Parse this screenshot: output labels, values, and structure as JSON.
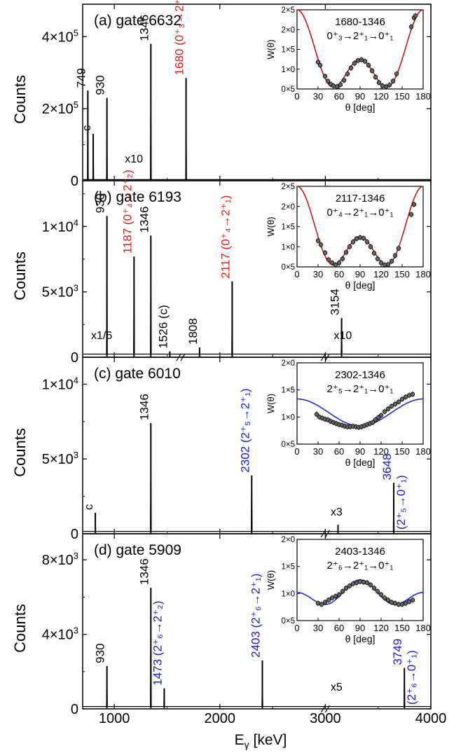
{
  "figure": {
    "ylabel": "Counts",
    "xlabel_main": "E",
    "xlabel_sub": "γ",
    "xlabel_unit": " [keV]",
    "x_ticks": [
      "1000",
      "2000",
      "3000",
      "4000"
    ],
    "xlim": [
      700,
      4000
    ]
  },
  "colors": {
    "black": "#000000",
    "red": "#e0201b",
    "blue": "#1a1adb",
    "inset_red": "#d11414",
    "inset_blue": "#1f2fd6"
  },
  "chart_data": [
    {
      "type": "line",
      "panel_label": "(a) gate 6632",
      "y_ticks": [
        {
          "value": 0,
          "label": "0"
        },
        {
          "value": 200000,
          "label": "2×10",
          "exp": "5"
        },
        {
          "value": 400000,
          "label": "4×10",
          "exp": "5"
        }
      ],
      "ylim": [
        0,
        490000
      ],
      "baseline_counts": 2000,
      "scale_marks": [
        {
          "label": "x10",
          "x": 1100
        }
      ],
      "peaks": [
        {
          "x": 749,
          "y": 250000,
          "label": "749",
          "color": "black"
        },
        {
          "x": 800,
          "y": 130000,
          "label": "c",
          "color": "black"
        },
        {
          "x": 930,
          "y": 230000,
          "label": "930",
          "color": "black"
        },
        {
          "x": 1346,
          "y": 380000,
          "label": "1346",
          "color": "black"
        },
        {
          "x": 1680,
          "y": 285000,
          "label": "1680 (0⁺₃→2⁺₁)",
          "color": "red"
        }
      ],
      "inset": {
        "title": "1680-1346",
        "subtitle": "0⁺₃→2⁺₁→0⁺₁",
        "ylabel": "W(θ)",
        "xlabel": "θ [deg]",
        "x_ticks": [
          "0",
          "30",
          "60",
          "90",
          "120",
          "150",
          "180"
        ],
        "y_ticks": [
          "0×5",
          "1×0",
          "1×5",
          "2×0",
          "2×5"
        ],
        "ylim": [
          0.5,
          2.5
        ],
        "fit_color": "inset_red",
        "fit": {
          "a2": 0.357,
          "a4": 1.143
        },
        "points": [
          {
            "x": 30,
            "y": 1.18
          },
          {
            "x": 33,
            "y": 1.1
          },
          {
            "x": 40,
            "y": 0.82
          },
          {
            "x": 44,
            "y": 0.7
          },
          {
            "x": 48,
            "y": 0.62
          },
          {
            "x": 52,
            "y": 0.58
          },
          {
            "x": 57,
            "y": 0.56
          },
          {
            "x": 62,
            "y": 0.61
          },
          {
            "x": 67,
            "y": 0.72
          },
          {
            "x": 72,
            "y": 0.88
          },
          {
            "x": 77,
            "y": 1.03
          },
          {
            "x": 82,
            "y": 1.15
          },
          {
            "x": 87,
            "y": 1.22
          },
          {
            "x": 92,
            "y": 1.24
          },
          {
            "x": 97,
            "y": 1.2
          },
          {
            "x": 102,
            "y": 1.1
          },
          {
            "x": 107,
            "y": 0.96
          },
          {
            "x": 112,
            "y": 0.8
          },
          {
            "x": 117,
            "y": 0.66
          },
          {
            "x": 122,
            "y": 0.58
          },
          {
            "x": 127,
            "y": 0.56
          },
          {
            "x": 132,
            "y": 0.6
          },
          {
            "x": 137,
            "y": 0.7
          },
          {
            "x": 142,
            "y": 0.88
          },
          {
            "x": 163,
            "y": 2.07
          },
          {
            "x": 167,
            "y": 2.3
          },
          {
            "x": 169,
            "y": 2.35
          }
        ]
      }
    },
    {
      "type": "line",
      "panel_label": "(b) gate 6193",
      "y_ticks": [
        {
          "value": 0,
          "label": "0"
        },
        {
          "value": 5000,
          "label": "5×10",
          "exp": "3"
        },
        {
          "value": 10000,
          "label": "1×10",
          "exp": "4"
        }
      ],
      "ylim": [
        0,
        13500
      ],
      "baseline_counts": 150,
      "scale_marks": [
        {
          "label": "x1/6",
          "x": 780
        },
        {
          "label": "x10",
          "x": 3080
        }
      ],
      "peaks": [
        {
          "x": 930,
          "y": 10800,
          "label": "930",
          "color": "black"
        },
        {
          "x": 1187,
          "y": 7700,
          "label": "1187 (0⁺₄→2⁺₂)",
          "color": "red"
        },
        {
          "x": 1346,
          "y": 9300,
          "label": "1346",
          "color": "black"
        },
        {
          "x": 1526,
          "y": 450,
          "label": "1526 (c)",
          "color": "black"
        },
        {
          "x": 1808,
          "y": 750,
          "label": "1808",
          "color": "black"
        },
        {
          "x": 2117,
          "y": 5800,
          "label": "2117 (0⁺₄→2⁺₁)",
          "color": "red"
        },
        {
          "x": 3154,
          "y": 3000,
          "label": "3154",
          "color": "black"
        }
      ],
      "inset": {
        "title": "2117-1346",
        "subtitle": "0⁺₄→2⁺₁→0⁺₁",
        "ylabel": "W(θ)",
        "xlabel": "θ [deg]",
        "x_ticks": [
          "0",
          "30",
          "60",
          "90",
          "120",
          "150",
          "180"
        ],
        "y_ticks": [
          "0×5",
          "1×0",
          "1×5",
          "2×0",
          "2×5"
        ],
        "ylim": [
          0.5,
          2.5
        ],
        "fit_color": "inset_red",
        "fit": {
          "a2": 0.357,
          "a4": 1.143
        },
        "points": [
          {
            "x": 30,
            "y": 1.15
          },
          {
            "x": 34,
            "y": 1.05
          },
          {
            "x": 40,
            "y": 0.85
          },
          {
            "x": 45,
            "y": 0.68
          },
          {
            "x": 50,
            "y": 0.6
          },
          {
            "x": 55,
            "y": 0.55
          },
          {
            "x": 60,
            "y": 0.6
          },
          {
            "x": 65,
            "y": 0.7
          },
          {
            "x": 70,
            "y": 0.86
          },
          {
            "x": 75,
            "y": 1.0
          },
          {
            "x": 80,
            "y": 1.12
          },
          {
            "x": 85,
            "y": 1.2
          },
          {
            "x": 90,
            "y": 1.23
          },
          {
            "x": 95,
            "y": 1.21
          },
          {
            "x": 100,
            "y": 1.12
          },
          {
            "x": 105,
            "y": 1.0
          },
          {
            "x": 110,
            "y": 0.84
          },
          {
            "x": 115,
            "y": 0.7
          },
          {
            "x": 120,
            "y": 0.6
          },
          {
            "x": 125,
            "y": 0.55
          },
          {
            "x": 130,
            "y": 0.56
          },
          {
            "x": 135,
            "y": 0.64
          },
          {
            "x": 140,
            "y": 0.78
          },
          {
            "x": 145,
            "y": 0.96
          },
          {
            "x": 163,
            "y": 1.8
          },
          {
            "x": 167,
            "y": 2.05
          }
        ]
      }
    },
    {
      "type": "line",
      "panel_label": "(c) gate 6010",
      "y_ticks": [
        {
          "value": 0,
          "label": "0"
        },
        {
          "value": 5000,
          "label": "5×10",
          "exp": "3"
        },
        {
          "value": 10000,
          "label": "1×10",
          "exp": "4"
        }
      ],
      "ylim": [
        0,
        11800
      ],
      "baseline_counts": 100,
      "scale_marks": [
        {
          "label": "x3",
          "x": 3050
        }
      ],
      "peaks": [
        {
          "x": 820,
          "y": 1400,
          "label": "c",
          "color": "black"
        },
        {
          "x": 1346,
          "y": 7400,
          "label": "1346",
          "color": "black"
        },
        {
          "x": 2302,
          "y": 3900,
          "label": "2302 (2⁺₅→2⁺₁)",
          "color": "blue"
        },
        {
          "x": 3120,
          "y": 600,
          "label": "",
          "color": "black"
        },
        {
          "x": 3648,
          "y": 3400,
          "label": "3648",
          "label2": "(2⁺₅→0⁺₁)",
          "color": "blue"
        }
      ],
      "inset": {
        "title": "2302-1346",
        "subtitle": "2⁺₅→2⁺₁→0⁺₁",
        "ylabel": "W(θ)",
        "xlabel": "θ [deg]",
        "x_ticks": [
          "0",
          "30",
          "60",
          "90",
          "120",
          "150",
          "180"
        ],
        "y_ticks": [
          "0×5",
          "1×0",
          "1×5",
          "2×0"
        ],
        "ylim": [
          0.5,
          2.0
        ],
        "fit_color": "inset_blue",
        "fit": {
          "a2": 0.333,
          "a4": 0.0
        },
        "points": [
          {
            "x": 28,
            "y": 1.05
          },
          {
            "x": 32,
            "y": 1.0
          },
          {
            "x": 36,
            "y": 0.98
          },
          {
            "x": 40,
            "y": 0.96
          },
          {
            "x": 44,
            "y": 0.95
          },
          {
            "x": 48,
            "y": 0.92
          },
          {
            "x": 52,
            "y": 0.9
          },
          {
            "x": 56,
            "y": 0.88
          },
          {
            "x": 60,
            "y": 0.86
          },
          {
            "x": 64,
            "y": 0.85
          },
          {
            "x": 68,
            "y": 0.83
          },
          {
            "x": 72,
            "y": 0.82
          },
          {
            "x": 76,
            "y": 0.82
          },
          {
            "x": 80,
            "y": 0.83
          },
          {
            "x": 84,
            "y": 0.82
          },
          {
            "x": 88,
            "y": 0.81
          },
          {
            "x": 92,
            "y": 0.82
          },
          {
            "x": 96,
            "y": 0.84
          },
          {
            "x": 100,
            "y": 0.86
          },
          {
            "x": 104,
            "y": 0.88
          },
          {
            "x": 108,
            "y": 0.9
          },
          {
            "x": 112,
            "y": 0.95
          },
          {
            "x": 116,
            "y": 0.99
          },
          {
            "x": 120,
            "y": 1.03
          },
          {
            "x": 125,
            "y": 1.1
          },
          {
            "x": 130,
            "y": 1.15
          },
          {
            "x": 135,
            "y": 1.2
          },
          {
            "x": 140,
            "y": 1.24
          },
          {
            "x": 145,
            "y": 1.28
          },
          {
            "x": 150,
            "y": 1.33
          },
          {
            "x": 155,
            "y": 1.37
          },
          {
            "x": 160,
            "y": 1.4
          },
          {
            "x": 165,
            "y": 1.42
          }
        ]
      }
    },
    {
      "type": "line",
      "panel_label": "(d) gate 5909",
      "y_ticks": [
        {
          "value": 0,
          "label": "0"
        },
        {
          "value": 4000,
          "label": "4×10",
          "exp": "3"
        },
        {
          "value": 8000,
          "label": "8×10",
          "exp": "3"
        }
      ],
      "ylim": [
        0,
        9400
      ],
      "baseline_counts": 80,
      "scale_marks": [
        {
          "label": "x5",
          "x": 3050
        }
      ],
      "peaks": [
        {
          "x": 930,
          "y": 2300,
          "label": "930",
          "color": "black"
        },
        {
          "x": 1346,
          "y": 6500,
          "label": "1346",
          "color": "black"
        },
        {
          "x": 1473,
          "y": 1100,
          "label": "1473 (2⁺₆→2⁺₂)",
          "color": "blue"
        },
        {
          "x": 2403,
          "y": 2600,
          "label": "2403 (2⁺₆→2⁺₁)",
          "color": "blue"
        },
        {
          "x": 3749,
          "y": 2200,
          "label": "3749",
          "label2": "(2⁺₆→0⁺₁)",
          "color": "blue"
        }
      ],
      "inset": {
        "title": "2403-1346",
        "subtitle": "2⁺₆→2⁺₁→0⁺₁",
        "ylabel": "W(θ)",
        "xlabel": "θ [deg]",
        "x_ticks": [
          "0",
          "30",
          "60",
          "90",
          "120",
          "150",
          "180"
        ],
        "y_ticks": [
          "0×5",
          "1×0",
          "1×5",
          "2×0"
        ],
        "ylim": [
          0.5,
          2.0
        ],
        "fit_color": "inset_blue",
        "fit": {
          "a2": -0.28,
          "a4": 0.3
        },
        "points": [
          {
            "x": 30,
            "y": 0.82
          },
          {
            "x": 35,
            "y": 0.8
          },
          {
            "x": 40,
            "y": 0.84
          },
          {
            "x": 45,
            "y": 0.88
          },
          {
            "x": 50,
            "y": 0.92
          },
          {
            "x": 55,
            "y": 0.95
          },
          {
            "x": 60,
            "y": 0.98
          },
          {
            "x": 65,
            "y": 1.04
          },
          {
            "x": 70,
            "y": 1.1
          },
          {
            "x": 75,
            "y": 1.14
          },
          {
            "x": 80,
            "y": 1.18
          },
          {
            "x": 85,
            "y": 1.2
          },
          {
            "x": 90,
            "y": 1.22
          },
          {
            "x": 95,
            "y": 1.21
          },
          {
            "x": 100,
            "y": 1.2
          },
          {
            "x": 105,
            "y": 1.16
          },
          {
            "x": 110,
            "y": 1.1
          },
          {
            "x": 115,
            "y": 1.04
          },
          {
            "x": 120,
            "y": 0.98
          },
          {
            "x": 125,
            "y": 0.92
          },
          {
            "x": 130,
            "y": 0.88
          },
          {
            "x": 135,
            "y": 0.84
          },
          {
            "x": 140,
            "y": 0.82
          },
          {
            "x": 145,
            "y": 0.8
          },
          {
            "x": 150,
            "y": 0.8
          },
          {
            "x": 155,
            "y": 0.82
          },
          {
            "x": 160,
            "y": 0.85
          },
          {
            "x": 165,
            "y": 0.88
          }
        ]
      }
    }
  ]
}
